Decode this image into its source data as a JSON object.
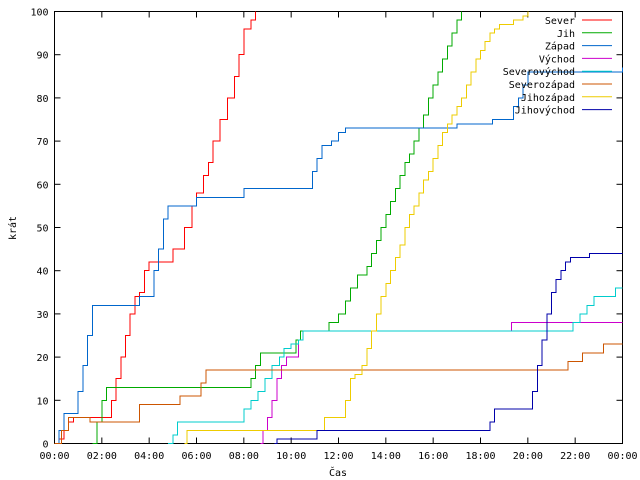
{
  "chart_data": {
    "type": "line",
    "title": "",
    "xlabel": "Čas",
    "ylabel": "krát",
    "xlim": [
      0,
      24
    ],
    "ylim": [
      0,
      100
    ],
    "grid": false,
    "legend_position": "top-right",
    "x_tick_labels": [
      "00:00",
      "02:00",
      "04:00",
      "06:00",
      "08:00",
      "10:00",
      "12:00",
      "14:00",
      "16:00",
      "18:00",
      "20:00",
      "22:00",
      "00:00"
    ],
    "y_ticks": [
      0,
      10,
      20,
      30,
      40,
      50,
      60,
      70,
      80,
      90,
      100
    ],
    "series": [
      {
        "name": "Sever",
        "color": "#ff0000",
        "points": [
          [
            0,
            0
          ],
          [
            0.2,
            1
          ],
          [
            0.4,
            3
          ],
          [
            0.6,
            5
          ],
          [
            0.8,
            6
          ],
          [
            2.2,
            6
          ],
          [
            2.4,
            10
          ],
          [
            2.6,
            15
          ],
          [
            2.8,
            20
          ],
          [
            3,
            25
          ],
          [
            3.2,
            30
          ],
          [
            3.4,
            34
          ],
          [
            3.6,
            35
          ],
          [
            3.8,
            40
          ],
          [
            4,
            42
          ],
          [
            4.8,
            42
          ],
          [
            5,
            45
          ],
          [
            5.3,
            45
          ],
          [
            5.5,
            50
          ],
          [
            5.8,
            55
          ],
          [
            6,
            58
          ],
          [
            6.3,
            62
          ],
          [
            6.5,
            65
          ],
          [
            6.7,
            70
          ],
          [
            7,
            75
          ],
          [
            7.3,
            80
          ],
          [
            7.6,
            85
          ],
          [
            7.8,
            90
          ],
          [
            8,
            96
          ],
          [
            8.3,
            98
          ],
          [
            8.5,
            100
          ]
        ]
      },
      {
        "name": "Jih",
        "color": "#00aa00",
        "points": [
          [
            1.6,
            0
          ],
          [
            1.8,
            5
          ],
          [
            2,
            10
          ],
          [
            2.2,
            13
          ],
          [
            8,
            13
          ],
          [
            8.3,
            15
          ],
          [
            8.5,
            18
          ],
          [
            8.7,
            21
          ],
          [
            10,
            21
          ],
          [
            10.2,
            24
          ],
          [
            10.4,
            26
          ],
          [
            11.3,
            26
          ],
          [
            11.6,
            28
          ],
          [
            12,
            30
          ],
          [
            12.3,
            33
          ],
          [
            12.5,
            36
          ],
          [
            12.8,
            39
          ],
          [
            13.2,
            41
          ],
          [
            13.4,
            44
          ],
          [
            13.6,
            47
          ],
          [
            13.8,
            50
          ],
          [
            14,
            53
          ],
          [
            14.2,
            56
          ],
          [
            14.4,
            59
          ],
          [
            14.6,
            62
          ],
          [
            14.8,
            65
          ],
          [
            15,
            67
          ],
          [
            15.2,
            70
          ],
          [
            15.4,
            73
          ],
          [
            15.6,
            76
          ],
          [
            15.8,
            80
          ],
          [
            16,
            83
          ],
          [
            16.2,
            86
          ],
          [
            16.4,
            89
          ],
          [
            16.6,
            92
          ],
          [
            16.8,
            95
          ],
          [
            17,
            98
          ],
          [
            17.2,
            100
          ]
        ]
      },
      {
        "name": "Západ",
        "color": "#0066cc",
        "points": [
          [
            0,
            0
          ],
          [
            0.2,
            3
          ],
          [
            0.4,
            7
          ],
          [
            0.8,
            7
          ],
          [
            1,
            12
          ],
          [
            1.2,
            18
          ],
          [
            1.4,
            25
          ],
          [
            1.6,
            32
          ],
          [
            3.4,
            32
          ],
          [
            3.6,
            34
          ],
          [
            4,
            34
          ],
          [
            4.2,
            40
          ],
          [
            4.4,
            45
          ],
          [
            4.6,
            52
          ],
          [
            4.8,
            55
          ],
          [
            5.8,
            55
          ],
          [
            6,
            57
          ],
          [
            7.8,
            57
          ],
          [
            8,
            59
          ],
          [
            10.7,
            59
          ],
          [
            10.9,
            63
          ],
          [
            11.1,
            66
          ],
          [
            11.3,
            69
          ],
          [
            11.7,
            70
          ],
          [
            12,
            72
          ],
          [
            12.3,
            73
          ],
          [
            16.8,
            73
          ],
          [
            17,
            74
          ],
          [
            18.3,
            74
          ],
          [
            18.5,
            75
          ],
          [
            19.2,
            75
          ],
          [
            19.4,
            78
          ],
          [
            19.6,
            80
          ],
          [
            19.8,
            83
          ],
          [
            20,
            86
          ],
          [
            23.8,
            86
          ],
          [
            24,
            87
          ]
        ]
      },
      {
        "name": "Východ",
        "color": "#cc00cc",
        "points": [
          [
            8.7,
            0
          ],
          [
            8.8,
            3
          ],
          [
            9,
            6
          ],
          [
            9.2,
            10
          ],
          [
            9.4,
            15
          ],
          [
            9.6,
            18
          ],
          [
            9.8,
            20
          ],
          [
            10.1,
            20
          ],
          [
            10.3,
            24
          ],
          [
            10.5,
            26
          ],
          [
            19.2,
            26
          ],
          [
            19.3,
            28
          ],
          [
            24,
            28
          ]
        ]
      },
      {
        "name": "Severovýchod",
        "color": "#00cccc",
        "points": [
          [
            4.8,
            0
          ],
          [
            5,
            2
          ],
          [
            5.2,
            5
          ],
          [
            7.8,
            5
          ],
          [
            8,
            8
          ],
          [
            8.3,
            10
          ],
          [
            8.6,
            12
          ],
          [
            8.9,
            15
          ],
          [
            9.2,
            18
          ],
          [
            9.5,
            20
          ],
          [
            9.7,
            22
          ],
          [
            10,
            23
          ],
          [
            10.3,
            24
          ],
          [
            10.5,
            26
          ],
          [
            21.7,
            26
          ],
          [
            21.9,
            28
          ],
          [
            22.2,
            30
          ],
          [
            22.5,
            32
          ],
          [
            22.8,
            34
          ],
          [
            23.5,
            34
          ],
          [
            23.7,
            36
          ],
          [
            24,
            36
          ]
        ]
      },
      {
        "name": "Severozápad",
        "color": "#cc5500",
        "points": [
          [
            0,
            0
          ],
          [
            0.3,
            3
          ],
          [
            0.6,
            6
          ],
          [
            1.3,
            6
          ],
          [
            1.5,
            5
          ],
          [
            3.4,
            5
          ],
          [
            3.6,
            9
          ],
          [
            5.1,
            9
          ],
          [
            5.3,
            11
          ],
          [
            6,
            11
          ],
          [
            6.2,
            14
          ],
          [
            6.4,
            17
          ],
          [
            21.5,
            17
          ],
          [
            21.7,
            19
          ],
          [
            22.3,
            21
          ],
          [
            23,
            21
          ],
          [
            23.2,
            23
          ],
          [
            24,
            23
          ]
        ]
      },
      {
        "name": "Jihozápad",
        "color": "#eecc00",
        "points": [
          [
            5.5,
            0
          ],
          [
            5.6,
            3
          ],
          [
            11.2,
            3
          ],
          [
            11.4,
            6
          ],
          [
            12,
            6
          ],
          [
            12.3,
            10
          ],
          [
            12.5,
            15
          ],
          [
            12.7,
            16
          ],
          [
            13,
            18
          ],
          [
            13.2,
            22
          ],
          [
            13.4,
            26
          ],
          [
            13.6,
            30
          ],
          [
            13.8,
            34
          ],
          [
            14,
            37
          ],
          [
            14.2,
            40
          ],
          [
            14.4,
            43
          ],
          [
            14.6,
            46
          ],
          [
            14.8,
            50
          ],
          [
            15,
            53
          ],
          [
            15.2,
            55
          ],
          [
            15.4,
            58
          ],
          [
            15.6,
            61
          ],
          [
            15.8,
            63
          ],
          [
            16,
            66
          ],
          [
            16.2,
            69
          ],
          [
            16.4,
            72
          ],
          [
            16.6,
            74
          ],
          [
            16.8,
            76
          ],
          [
            17,
            78
          ],
          [
            17.2,
            80
          ],
          [
            17.4,
            83
          ],
          [
            17.6,
            86
          ],
          [
            17.8,
            89
          ],
          [
            18,
            91
          ],
          [
            18.2,
            93
          ],
          [
            18.4,
            95
          ],
          [
            18.6,
            96
          ],
          [
            18.8,
            97
          ],
          [
            19.2,
            97
          ],
          [
            19.4,
            98
          ],
          [
            19.8,
            99
          ],
          [
            20,
            100
          ]
        ]
      },
      {
        "name": "Jihovýchod",
        "color": "#0000aa",
        "points": [
          [
            9.3,
            0
          ],
          [
            9.4,
            1
          ],
          [
            10.9,
            1
          ],
          [
            11.1,
            3
          ],
          [
            18.2,
            3
          ],
          [
            18.4,
            5
          ],
          [
            18.6,
            8
          ],
          [
            20,
            8
          ],
          [
            20.2,
            12
          ],
          [
            20.4,
            18
          ],
          [
            20.6,
            24
          ],
          [
            20.8,
            30
          ],
          [
            21,
            35
          ],
          [
            21.2,
            38
          ],
          [
            21.4,
            40
          ],
          [
            21.6,
            42
          ],
          [
            21.8,
            43
          ],
          [
            22.4,
            43
          ],
          [
            22.6,
            44
          ],
          [
            24,
            44
          ]
        ]
      }
    ]
  }
}
